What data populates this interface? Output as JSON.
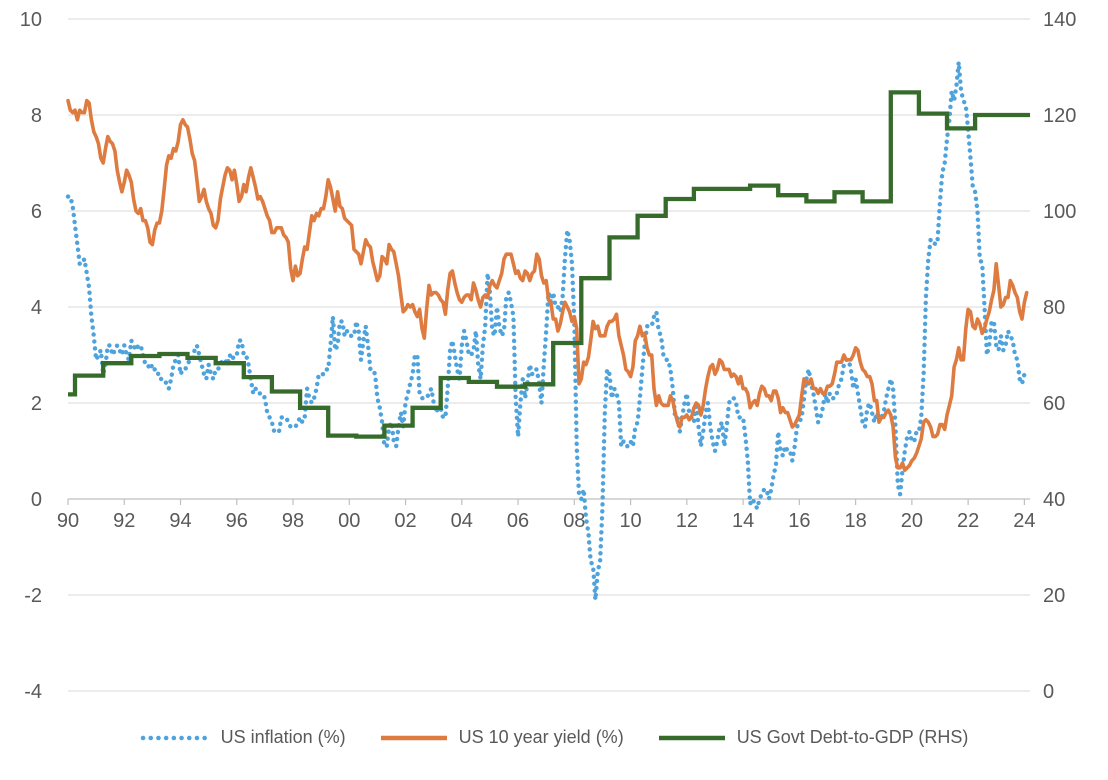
{
  "legend": {
    "items": [
      {
        "label": "US inflation (%)"
      },
      {
        "label": "US 10 year yield (%)"
      },
      {
        "label": "US Govt Debt-to-GDP (RHS)"
      }
    ]
  },
  "chart_data": {
    "type": "line",
    "title": "",
    "background": "#ffffff",
    "gridline_color": "#d9d9d9",
    "axis_line_color": "#bfbfbf",
    "axis_label_color": "#595959",
    "left_axis": {
      "min": -4,
      "max": 10,
      "tick_step": 2,
      "tick_labels": [
        "10",
        "8",
        "6",
        "4",
        "2",
        "0",
        "-2",
        "-4"
      ]
    },
    "right_axis": {
      "min": 0,
      "max": 140,
      "tick_step": 20,
      "tick_labels": [
        "140",
        "120",
        "100",
        "80",
        "60",
        "40",
        "20",
        "0"
      ]
    },
    "x_axis": {
      "tick_labels": [
        "90",
        "92",
        "94",
        "96",
        "98",
        "00",
        "02",
        "04",
        "06",
        "08",
        "10",
        "12",
        "14",
        "16",
        "18",
        "20",
        "22",
        "24"
      ],
      "first_tick_time": 1990.75,
      "tick_interval_years": 2
    },
    "series": [
      {
        "name": "US inflation (%)",
        "axis": "left",
        "line_style": "dotted",
        "color": "#4fa3dd",
        "frequency": "monthly",
        "start_time": 1990.75,
        "values": [
          6.3,
          6.3,
          6.1,
          5.7,
          5.3,
          4.9,
          4.9,
          5.0,
          4.7,
          4.4,
          3.8,
          3.4,
          2.9,
          3.0,
          3.1,
          2.6,
          2.8,
          3.2,
          3.2,
          3.0,
          3.1,
          3.2,
          3.1,
          3.0,
          3.2,
          3.0,
          2.9,
          3.3,
          3.2,
          3.1,
          3.2,
          3.2,
          3.0,
          2.8,
          2.8,
          2.7,
          2.8,
          2.7,
          2.7,
          2.5,
          2.5,
          2.5,
          2.4,
          2.3,
          2.5,
          2.8,
          2.9,
          3.0,
          2.6,
          2.7,
          2.7,
          2.8,
          2.9,
          2.9,
          3.1,
          3.2,
          3.0,
          2.8,
          2.6,
          2.5,
          2.8,
          2.6,
          2.5,
          2.7,
          2.7,
          2.8,
          2.9,
          2.9,
          2.8,
          3.0,
          2.9,
          3.0,
          3.0,
          3.3,
          3.3,
          3.0,
          3.0,
          2.8,
          2.5,
          2.2,
          2.3,
          2.2,
          2.2,
          2.2,
          2.1,
          1.8,
          1.7,
          1.6,
          1.4,
          1.4,
          1.4,
          1.7,
          1.7,
          1.7,
          1.6,
          1.5,
          1.5,
          1.5,
          1.6,
          1.7,
          1.6,
          1.7,
          2.3,
          2.1,
          2.0,
          2.1,
          2.3,
          2.6,
          2.6,
          2.6,
          2.7,
          2.7,
          3.2,
          3.8,
          3.1,
          3.2,
          3.7,
          3.7,
          3.4,
          3.5,
          3.4,
          3.4,
          3.4,
          3.7,
          3.5,
          2.9,
          3.3,
          3.6,
          3.2,
          2.7,
          2.7,
          2.6,
          2.1,
          1.9,
          1.6,
          1.1,
          1.1,
          1.5,
          1.6,
          1.2,
          1.1,
          1.5,
          1.8,
          1.5,
          2.0,
          2.2,
          2.4,
          2.6,
          3.0,
          3.0,
          2.2,
          2.1,
          2.1,
          2.1,
          2.2,
          2.3,
          2.0,
          1.8,
          1.9,
          1.9,
          1.7,
          1.7,
          2.3,
          3.1,
          3.3,
          3.0,
          2.7,
          2.5,
          3.2,
          3.5,
          3.3,
          3.0,
          3.0,
          3.1,
          3.5,
          2.8,
          2.5,
          3.2,
          3.6,
          4.7,
          4.3,
          3.5,
          3.4,
          4.0,
          3.6,
          3.4,
          3.5,
          4.2,
          4.3,
          4.1,
          3.8,
          2.1,
          1.3,
          2.0,
          2.5,
          2.1,
          2.4,
          2.8,
          2.6,
          2.7,
          2.7,
          2.4,
          2.0,
          2.8,
          3.5,
          4.3,
          4.1,
          4.3,
          4.0,
          4.0,
          3.9,
          4.2,
          5.0,
          5.6,
          5.4,
          4.9,
          3.7,
          1.1,
          0.1,
          0.0,
          0.2,
          -0.4,
          -0.7,
          -1.3,
          -1.4,
          -2.1,
          -1.5,
          -1.3,
          -0.2,
          1.8,
          2.7,
          2.6,
          2.1,
          2.3,
          2.2,
          2.0,
          1.1,
          1.2,
          1.1,
          1.1,
          1.2,
          1.1,
          1.5,
          1.6,
          2.1,
          2.7,
          3.2,
          3.6,
          3.6,
          3.6,
          3.8,
          3.9,
          3.5,
          3.4,
          3.0,
          2.9,
          2.9,
          2.7,
          2.3,
          1.7,
          1.7,
          1.4,
          1.7,
          2.0,
          2.2,
          1.8,
          1.7,
          1.6,
          2.0,
          1.5,
          1.1,
          1.4,
          1.8,
          2.0,
          1.5,
          1.2,
          1.0,
          1.2,
          1.5,
          1.6,
          1.1,
          1.5,
          2.0,
          2.1,
          2.1,
          2.0,
          1.7,
          1.7,
          1.7,
          1.3,
          0.8,
          -0.1,
          0.0,
          -0.1,
          -0.2,
          0.0,
          0.1,
          0.2,
          0.2,
          0.0,
          0.2,
          0.5,
          0.7,
          1.4,
          1.0,
          0.9,
          1.1,
          1.0,
          1.0,
          0.8,
          1.1,
          1.5,
          1.6,
          1.7,
          2.1,
          2.5,
          2.7,
          2.4,
          2.2,
          1.9,
          1.6,
          1.7,
          1.9,
          2.2,
          2.0,
          2.2,
          2.1,
          2.1,
          2.2,
          2.4,
          2.5,
          2.8,
          2.9,
          2.9,
          2.7,
          2.3,
          2.5,
          2.2,
          1.9,
          1.6,
          1.5,
          1.9,
          2.0,
          1.8,
          1.6,
          1.8,
          1.7,
          1.7,
          1.8,
          2.1,
          2.3,
          2.5,
          2.3,
          1.5,
          0.3,
          0.1,
          0.6,
          1.0,
          1.3,
          1.4,
          1.2,
          1.2,
          1.4,
          1.4,
          1.7,
          2.6,
          4.2,
          5.0,
          5.4,
          5.4,
          5.3,
          5.4,
          6.2,
          6.8,
          7.0,
          7.5,
          7.9,
          8.5,
          8.3,
          8.6,
          9.1,
          8.5,
          8.3,
          8.2,
          7.7,
          7.1,
          6.5,
          6.4,
          6.0,
          5.0,
          4.9,
          4.0,
          3.0,
          3.2,
          3.7,
          3.7,
          3.2,
          3.1,
          3.4,
          3.1,
          3.2,
          3.5,
          3.4,
          3.3,
          3.0,
          2.9,
          2.5,
          2.4,
          2.6
        ]
      },
      {
        "name": "US 10 year yield (%)",
        "axis": "left",
        "line_style": "solid",
        "color": "#de7b40",
        "frequency": "monthly",
        "start_time": 1990.75,
        "values": [
          8.3,
          8.1,
          8.05,
          8.1,
          7.9,
          8.1,
          8.05,
          8.05,
          8.3,
          8.25,
          7.9,
          7.65,
          7.55,
          7.4,
          7.1,
          7.0,
          7.3,
          7.55,
          7.45,
          7.4,
          7.25,
          6.85,
          6.6,
          6.4,
          6.6,
          6.85,
          6.75,
          6.6,
          6.25,
          6.0,
          5.95,
          6.05,
          5.8,
          5.8,
          5.65,
          5.35,
          5.3,
          5.6,
          5.75,
          5.75,
          6.0,
          6.45,
          6.95,
          7.15,
          7.1,
          7.3,
          7.25,
          7.45,
          7.8,
          7.9,
          7.8,
          7.75,
          7.5,
          7.2,
          7.05,
          6.65,
          6.2,
          6.3,
          6.45,
          6.2,
          6.05,
          5.95,
          5.7,
          5.65,
          5.8,
          6.25,
          6.5,
          6.75,
          6.9,
          6.85,
          6.65,
          6.85,
          6.55,
          6.2,
          6.3,
          6.55,
          6.4,
          6.7,
          6.9,
          6.7,
          6.5,
          6.25,
          6.3,
          6.2,
          6.05,
          5.9,
          5.8,
          5.55,
          5.55,
          5.65,
          5.65,
          5.65,
          5.5,
          5.45,
          5.35,
          4.8,
          4.55,
          4.85,
          4.65,
          4.7,
          5.0,
          5.25,
          5.2,
          5.55,
          5.9,
          5.8,
          5.95,
          5.9,
          6.05,
          6.05,
          6.3,
          6.65,
          6.5,
          6.25,
          6.0,
          6.4,
          6.1,
          6.05,
          5.85,
          5.8,
          5.75,
          5.7,
          5.2,
          5.15,
          5.1,
          4.9,
          5.15,
          5.4,
          5.3,
          5.25,
          4.95,
          4.75,
          4.55,
          4.65,
          5.05,
          5.0,
          4.9,
          5.3,
          5.2,
          5.15,
          4.9,
          4.65,
          4.25,
          3.9,
          3.95,
          4.05,
          4.0,
          4.05,
          3.9,
          3.8,
          3.95,
          3.55,
          3.35,
          3.95,
          4.45,
          4.25,
          4.3,
          4.3,
          4.25,
          4.15,
          4.1,
          3.85,
          4.35,
          4.7,
          4.75,
          4.5,
          4.3,
          4.15,
          4.1,
          4.2,
          4.25,
          4.25,
          4.15,
          4.5,
          4.35,
          4.15,
          4.0,
          4.2,
          4.25,
          4.2,
          4.45,
          4.55,
          4.45,
          4.4,
          4.55,
          4.7,
          5.0,
          5.1,
          5.1,
          5.1,
          4.9,
          4.7,
          4.75,
          4.6,
          4.55,
          4.75,
          4.7,
          4.55,
          4.7,
          4.75,
          5.1,
          5.0,
          4.65,
          4.5,
          4.55,
          4.15,
          4.1,
          3.75,
          3.75,
          3.5,
          3.65,
          3.9,
          4.1,
          4.0,
          3.9,
          3.7,
          3.8,
          3.55,
          2.4,
          2.5,
          2.85,
          2.8,
          2.95,
          3.3,
          3.7,
          3.55,
          3.6,
          3.4,
          3.4,
          3.4,
          3.6,
          3.7,
          3.7,
          3.75,
          3.85,
          3.4,
          3.2,
          3.0,
          2.7,
          2.65,
          2.55,
          2.75,
          3.3,
          3.4,
          3.6,
          3.4,
          3.45,
          3.15,
          3.0,
          3.0,
          2.3,
          1.95,
          2.15,
          2.0,
          1.95,
          1.95,
          1.95,
          2.15,
          2.05,
          1.8,
          1.6,
          1.5,
          1.7,
          1.7,
          1.75,
          1.65,
          1.7,
          1.9,
          2.0,
          1.95,
          1.75,
          1.95,
          2.3,
          2.55,
          2.75,
          2.8,
          2.6,
          2.7,
          2.9,
          2.85,
          2.7,
          2.7,
          2.7,
          2.55,
          2.6,
          2.55,
          2.4,
          2.55,
          2.3,
          2.3,
          2.2,
          1.9,
          2.0,
          2.05,
          1.95,
          2.2,
          2.35,
          2.3,
          2.15,
          2.15,
          2.05,
          2.25,
          2.25,
          2.1,
          1.8,
          1.9,
          1.8,
          1.8,
          1.65,
          1.5,
          1.55,
          1.65,
          1.75,
          2.15,
          2.5,
          2.45,
          2.4,
          2.5,
          2.3,
          2.3,
          2.2,
          2.3,
          2.2,
          2.2,
          2.35,
          2.35,
          2.4,
          2.6,
          2.85,
          2.85,
          2.85,
          3.0,
          2.9,
          2.9,
          2.9,
          3.0,
          3.15,
          3.1,
          2.85,
          2.7,
          2.65,
          2.55,
          2.55,
          2.4,
          2.05,
          2.05,
          1.6,
          1.7,
          1.7,
          1.8,
          1.85,
          1.75,
          1.5,
          0.85,
          0.65,
          0.65,
          0.75,
          0.6,
          0.65,
          0.7,
          0.8,
          0.85,
          0.95,
          1.1,
          1.25,
          1.6,
          1.65,
          1.6,
          1.5,
          1.3,
          1.3,
          1.35,
          1.55,
          1.55,
          1.45,
          1.75,
          1.95,
          2.15,
          2.75,
          2.9,
          3.15,
          2.9,
          2.9,
          3.55,
          3.95,
          3.9,
          3.6,
          3.55,
          3.75,
          3.65,
          3.45,
          3.55,
          3.75,
          3.9,
          4.15,
          4.35,
          4.9,
          4.45,
          4.0,
          4.05,
          4.2,
          4.2,
          4.55,
          4.45,
          4.3,
          4.2,
          3.9,
          3.75,
          4.1,
          4.3
        ]
      },
      {
        "name": "US Govt Debt-to-GDP (RHS)",
        "axis": "right",
        "line_style": "step",
        "color": "#366b2b",
        "frequency": "annual",
        "start_year": 1990,
        "values": [
          61.8,
          65.7,
          68.3,
          69.8,
          70.2,
          69.4,
          68.3,
          65.4,
          62.4,
          59.0,
          53.2,
          53.0,
          55.3,
          59.0,
          65.2,
          64.4,
          63.4,
          63.9,
          72.5,
          86.0,
          94.5,
          99.0,
          102.5,
          104.6,
          104.6,
          105.3,
          103.3,
          102.0,
          103.9,
          102.0,
          124.7,
          120.3,
          117.2,
          120.0,
          120.0
        ]
      }
    ]
  }
}
